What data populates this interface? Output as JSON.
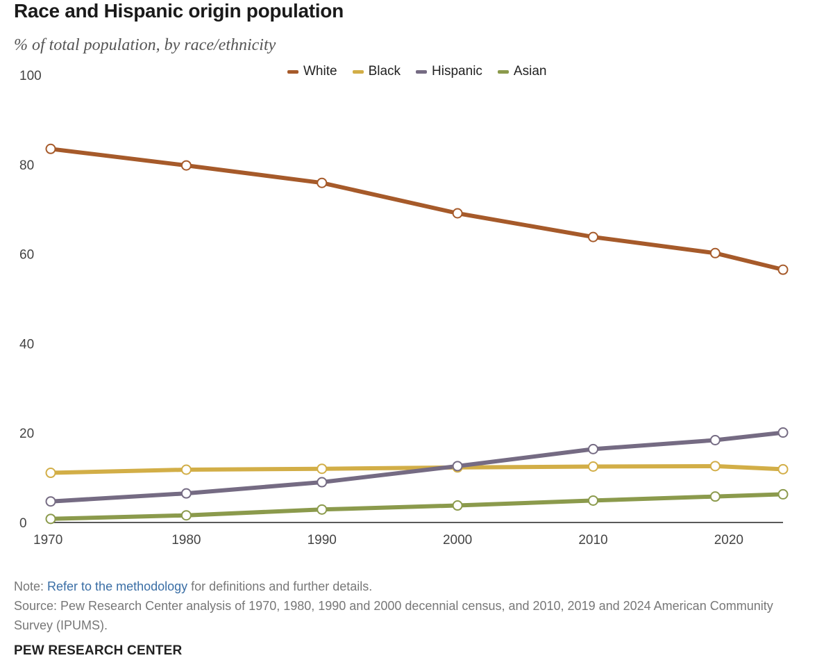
{
  "title": "Race and Hispanic origin population",
  "subtitle": "% of total population, by race/ethnicity",
  "note": {
    "prefix": "Note: ",
    "link_text": "Refer to the methodology",
    "suffix": " for definitions and further details."
  },
  "source": "Source: Pew Research Center analysis of 1970, 1980, 1990 and 2000 decennial census, and 2010, 2019 and 2024 American Community Survey (IPUMS).",
  "brand": "PEW RESEARCH CENTER",
  "chart_data": {
    "type": "line",
    "title": "Race and Hispanic origin population",
    "subtitle": "% of total population, by race/ethnicity",
    "x": [
      1970,
      1980,
      1990,
      2000,
      2010,
      2019,
      2024
    ],
    "xlim": [
      1970,
      2024
    ],
    "x_ticks": [
      "1970",
      "1980",
      "1990",
      "2000",
      "2010",
      "2020"
    ],
    "x_tick_values": [
      1970,
      1980,
      1990,
      2000,
      2010,
      2020
    ],
    "ylim": [
      0,
      100
    ],
    "y_ticks": [
      0,
      20,
      40,
      60,
      80,
      100
    ],
    "grid": false,
    "legend": "top",
    "series": [
      {
        "name": "White",
        "color": "#a65a2a",
        "values": [
          83.5,
          79.8,
          75.9,
          69.1,
          63.8,
          60.2,
          56.5
        ]
      },
      {
        "name": "Black",
        "color": "#d2ae47",
        "values": [
          11.1,
          11.8,
          12.0,
          12.3,
          12.5,
          12.6,
          11.9
        ]
      },
      {
        "name": "Hispanic",
        "color": "#756b83",
        "values": [
          4.7,
          6.5,
          9.0,
          12.6,
          16.4,
          18.4,
          20.1
        ]
      },
      {
        "name": "Asian",
        "color": "#8b9a4c",
        "values": [
          0.8,
          1.6,
          2.9,
          3.8,
          4.9,
          5.8,
          6.3
        ]
      }
    ]
  }
}
